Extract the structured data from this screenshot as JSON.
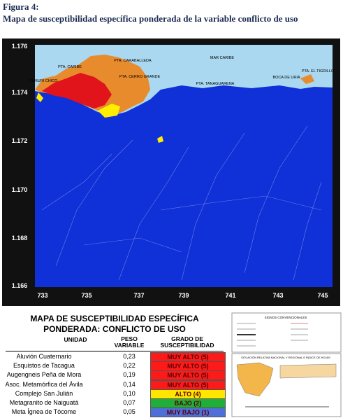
{
  "figure": {
    "label": "Figura 4:",
    "caption": "Mapa de susceptibilidad específica ponderada de la variable conflicto de uso"
  },
  "map": {
    "y_labels": [
      "1.176",
      "1.174",
      "1.172",
      "1.170",
      "1.168",
      "1.166"
    ],
    "x_labels": [
      "733",
      "735",
      "737",
      "739",
      "741",
      "743",
      "745"
    ],
    "places": [
      "PTA. CARABALLEDA",
      "PTA. CARIBE",
      "MAR CARIBE",
      "CAMURI CHICO",
      "PTA. CERRO GRANDE",
      "PTA. TANAGUARENA",
      "BOCA DE URIA",
      "PTA. EL TIGRILLO"
    ]
  },
  "legend": {
    "title": [
      "MAPA DE SUSCEPTIBILIDAD ESPECÍFICA",
      "PONDERADA: CONFLICTO DE USO"
    ],
    "headers": [
      "UNIDAD",
      "PESO VARIABLE",
      "GRADO DE SUSCEPTIBILIDAD"
    ],
    "rows": [
      [
        "Aluvión Cuaternario",
        "0,23",
        "MUY ALTO (5)"
      ],
      [
        "Esquistos de Tacagua",
        "0,22",
        "MUY ALTO (5)"
      ],
      [
        "Augengneis Peña de Mora",
        "0,19",
        "MUY ALTO (5)"
      ],
      [
        "Asoc. Metamórfica del Ávila",
        "0,14",
        "MUY ALTO (5)"
      ],
      [
        "Complejo San Julián",
        "0,10",
        "ALTO (4)"
      ],
      [
        "Metagranito de Naiguatá",
        "0,07",
        "BAJO (2)"
      ],
      [
        "Meta Ígnea de Tócome",
        "0,05",
        "MUY BAJO (1)"
      ]
    ],
    "colors": [
      "#ff1a1a",
      "#ff1a1a",
      "#ff1a1a",
      "#ff1a1a",
      "#ffe600",
      "#1fae3a",
      "#4f6fd8"
    ]
  },
  "insets": {
    "signs_title": "SIGNOS CONVENCIONALES",
    "location_title": "SITUACIÓN RELATIVA NACIONAL Y REGIONAL E ÍNDICE DE HOJAS"
  }
}
